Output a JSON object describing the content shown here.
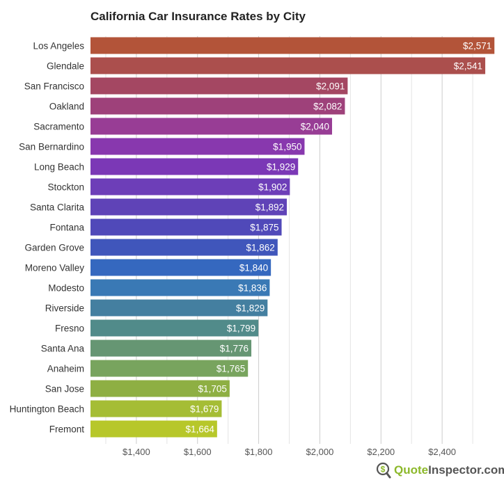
{
  "chart_data": {
    "type": "bar",
    "orientation": "horizontal",
    "title": "California Car Insurance Rates by City",
    "categories": [
      "Los Angeles",
      "Glendale",
      "San Francisco",
      "Oakland",
      "Sacramento",
      "San Bernardino",
      "Long Beach",
      "Stockton",
      "Santa Clarita",
      "Fontana",
      "Garden Grove",
      "Moreno Valley",
      "Modesto",
      "Riverside",
      "Fresno",
      "Santa Ana",
      "Anaheim",
      "San Jose",
      "Huntington Beach",
      "Fremont"
    ],
    "values": [
      2571,
      2541,
      2091,
      2082,
      2040,
      1950,
      1929,
      1902,
      1892,
      1875,
      1862,
      1840,
      1836,
      1829,
      1799,
      1776,
      1765,
      1705,
      1679,
      1664
    ],
    "data_labels": [
      "$2,571",
      "$2,541",
      "$2,091",
      "$2,082",
      "$2,040",
      "$1,950",
      "$1,929",
      "$1,902",
      "$1,892",
      "$1,875",
      "$1,862",
      "$1,840",
      "$1,836",
      "$1,829",
      "$1,799",
      "$1,776",
      "$1,765",
      "$1,705",
      "$1,679",
      "$1,664"
    ],
    "colors": [
      "#b35439",
      "#ab4f4d",
      "#a44762",
      "#9e417a",
      "#983d95",
      "#8838ae",
      "#7b38b6",
      "#6d3eb8",
      "#5f43b7",
      "#5049b9",
      "#4056bb",
      "#3568bf",
      "#3a79b5",
      "#447fa0",
      "#518b8a",
      "#669673",
      "#78a45e",
      "#8eaf43",
      "#a5bd35",
      "#b7c72a"
    ],
    "xlim": [
      1250,
      2575
    ],
    "x_ticks": [
      1400,
      1600,
      1800,
      2000,
      2200,
      2400
    ],
    "x_tick_labels": [
      "$1,400",
      "$1,600",
      "$1,800",
      "$2,000",
      "$2,200",
      "$2,400"
    ],
    "xlabel": "",
    "ylabel": "",
    "grid": true,
    "legend": "none"
  },
  "logo": {
    "part1": "Quote",
    "part2": "Inspector.com",
    "icon": "dollar-magnifier-icon"
  }
}
